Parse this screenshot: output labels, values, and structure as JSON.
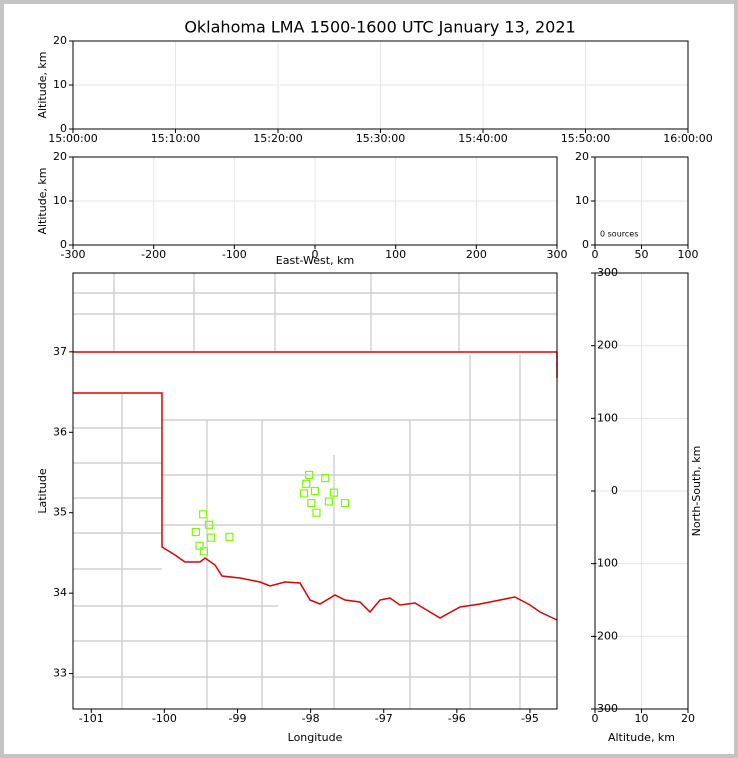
{
  "chart_data": [
    {
      "type": "line",
      "title": "Oklahoma LMA 1500-1600 UTC January 13, 2021",
      "y_label": "Altitude, km",
      "xticks": [
        "15:00:00",
        "15:10:00",
        "15:20:00",
        "15:30:00",
        "15:40:00",
        "15:50:00",
        "16:00:00"
      ],
      "ylim": [
        0,
        20
      ],
      "yticks": [
        0,
        10,
        20
      ],
      "grid": true
    },
    {
      "type": "scatter",
      "x_label": "East-West, km",
      "y_label": "Altitude, km",
      "xlim": [
        -300,
        300
      ],
      "xticks": [
        -300,
        -200,
        -100,
        0,
        100,
        200,
        300
      ],
      "ylim": [
        0,
        20
      ],
      "yticks": [
        0,
        10,
        20
      ],
      "grid": true
    },
    {
      "type": "histogram",
      "annotation": "0 sources",
      "xlim": [
        0,
        100
      ],
      "xticks": [
        0,
        50,
        100
      ],
      "ylim": [
        0,
        20
      ],
      "yticks": [
        0,
        10,
        20
      ],
      "grid": true
    },
    {
      "type": "scatter",
      "x_label": "Longitude",
      "y_label": "Latitude",
      "color": "#7cfc00",
      "xlim": [
        -101.25,
        -94.63
      ],
      "xticks": [
        -101,
        -100,
        -99,
        -98,
        -97,
        -96,
        -95
      ],
      "ylim": [
        32.56,
        37.98
      ],
      "yticks": [
        33,
        34,
        35,
        36,
        37
      ],
      "grid": false,
      "x": [
        -98.02,
        -97.8,
        -98.06,
        -97.94,
        -97.68,
        -98.09,
        -97.99,
        -97.75,
        -97.53,
        -97.92,
        -99.47,
        -99.39,
        -99.57,
        -99.36,
        -99.11,
        -99.52,
        -99.46
      ],
      "values": [
        35.47,
        35.43,
        35.36,
        35.27,
        35.25,
        35.24,
        35.12,
        35.14,
        35.12,
        35.0,
        34.98,
        34.85,
        34.76,
        34.69,
        34.7,
        34.59,
        34.52
      ]
    },
    {
      "type": "line",
      "x_label": "Altitude, km",
      "y_label": "North-South, km",
      "xlim": [
        0,
        20
      ],
      "xticks": [
        0,
        10,
        20
      ],
      "ylim": [
        -300,
        300
      ],
      "yticks": [
        -300,
        -200,
        -100,
        0,
        100,
        200,
        300
      ],
      "grid": true
    }
  ]
}
